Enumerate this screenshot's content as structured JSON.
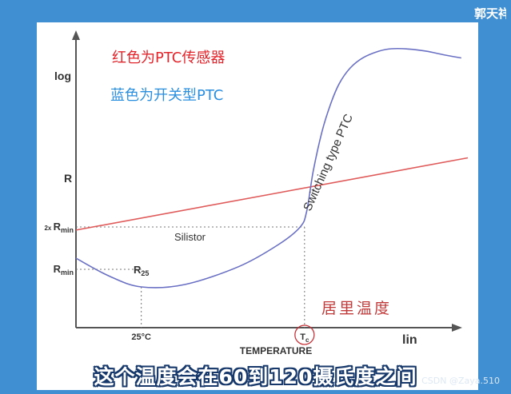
{
  "corner_name": "郭天祥",
  "subtitle": "这个温度会在60到120摄氏度之间",
  "watermark": "CSDN @Zaya.510",
  "chart_data": {
    "type": "line",
    "annotations": {
      "red_note": "红色为PTC传感器",
      "blue_note": "蓝色为开关型PTC",
      "handwritten": "居里温度"
    },
    "ylabel_top": "log",
    "ylabel": "R",
    "xlabel": "TEMPERATURE",
    "xlabel_right": "lin",
    "x_ticks": [
      {
        "label": "25°C",
        "x": 25
      },
      {
        "label": "T",
        "sub": "c",
        "x": 100
      }
    ],
    "y_ticks": [
      {
        "prefix": "2x ",
        "label": "R",
        "sub": "min",
        "y": 2
      },
      {
        "label": "R",
        "sub": "min",
        "y": 1
      }
    ],
    "xlim": [
      -5,
      175
    ],
    "ylim": [
      0,
      40
    ],
    "colors": {
      "silistor": "#e05a5a",
      "switching": "#6a70c4",
      "red_note": "#e3242b",
      "blue_note": "#2b8fe0",
      "handwritten": "#c23a3a"
    },
    "series": [
      {
        "name": "Silistor",
        "label": "Silistor",
        "color": "#e05a5a",
        "points": [
          [
            -5,
            1.9
          ],
          [
            175,
            6.2
          ]
        ]
      },
      {
        "name": "Switching type PTC",
        "label": "Switching type PTC",
        "label2": "R",
        "label2_sub": "25",
        "color": "#6a70c4",
        "points": [
          [
            -5,
            1.2
          ],
          [
            10,
            0.9
          ],
          [
            25,
            0.75
          ],
          [
            45,
            0.78
          ],
          [
            70,
            1.05
          ],
          [
            88,
            1.5
          ],
          [
            98,
            2.0
          ],
          [
            101,
            2.6
          ],
          [
            104,
            5.0
          ],
          [
            108,
            9.5
          ],
          [
            112,
            15
          ],
          [
            116,
            21
          ],
          [
            121,
            27
          ],
          [
            127,
            32
          ],
          [
            134,
            35.5
          ],
          [
            140,
            37
          ],
          [
            148,
            36.8
          ],
          [
            156,
            35.5
          ],
          [
            164,
            33.5
          ],
          [
            172,
            31.8
          ]
        ]
      }
    ]
  }
}
